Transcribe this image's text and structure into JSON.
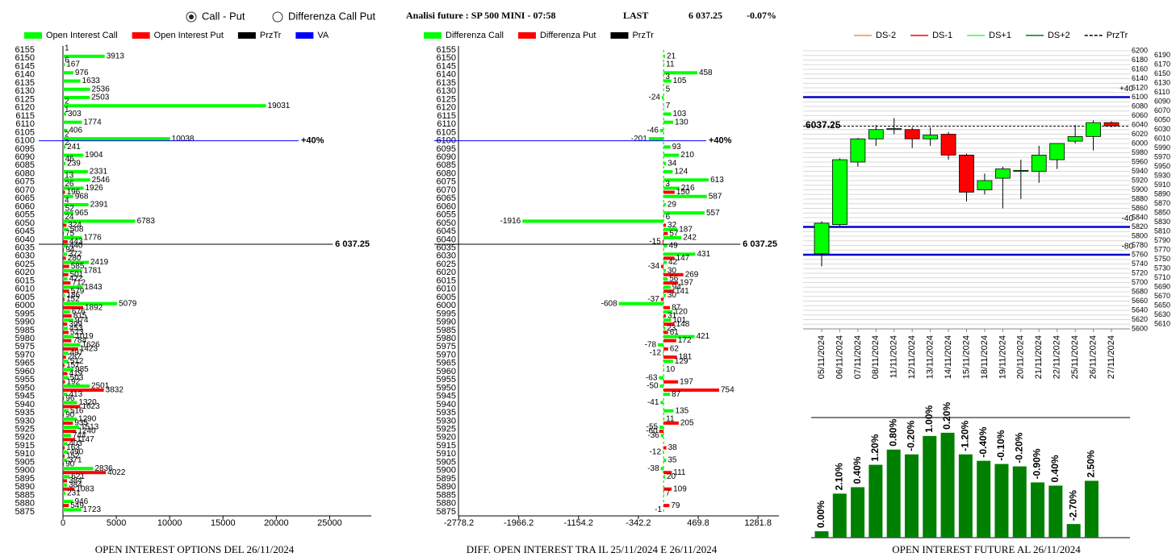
{
  "header": {
    "radio_options": [
      "Call - Put",
      "Differenza Call Put"
    ],
    "selected": 0,
    "info": "Analisi future : SP 500 MINI - 07:58",
    "last_label": "LAST",
    "last_value": "6 037.25",
    "change": "-0.07%"
  },
  "chart_data": [
    {
      "type": "hbar",
      "title": "OPEN INTEREST OPTIONS DEL 26/11/2024",
      "categories": [
        6155,
        6150,
        6145,
        6140,
        6135,
        6130,
        6125,
        6120,
        6115,
        6110,
        6105,
        6100,
        6095,
        6090,
        6085,
        6080,
        6075,
        6070,
        6065,
        6060,
        6055,
        6050,
        6045,
        6040,
        6035,
        6030,
        6025,
        6020,
        6015,
        6010,
        6005,
        6000,
        5995,
        5990,
        5985,
        5980,
        5975,
        5970,
        5965,
        5960,
        5955,
        5950,
        5945,
        5940,
        5935,
        5930,
        5925,
        5920,
        5915,
        5910,
        5905,
        5900,
        5895,
        5890,
        5885,
        5880,
        5875
      ],
      "series": [
        {
          "name": "Open Interest Call",
          "color": "#00ff00",
          "values": [
            1,
            3913,
            167,
            976,
            1633,
            2536,
            2503,
            19031,
            303,
            1774,
            406,
            10038,
            241,
            1904,
            239,
            2331,
            2546,
            1926,
            968,
            2391,
            965,
            6783,
            508,
            1776,
            440,
            372,
            2419,
            1781,
            422,
            1843,
            186,
            5079,
            676,
            974,
            453,
            1019,
            1626,
            497,
            512,
            985,
            503,
            2501,
            413,
            1320,
            516,
            1290,
            1513,
            744,
            403,
            490,
            371,
            2836,
            621,
            384,
            231,
            946,
            1723
          ]
        },
        {
          "name": "Open Interest Put",
          "color": "#ff0000",
          "values": [
            0,
            6,
            0,
            0,
            0,
            0,
            2,
            1,
            0,
            0,
            2,
            2,
            0,
            46,
            0,
            13,
            26,
            196,
            4,
            52,
            24,
            324,
            75,
            443,
            94,
            280,
            585,
            501,
            712,
            579,
            152,
            1892,
            815,
            399,
            523,
            784,
            1423,
            287,
            157,
            419,
            192,
            3832,
            96,
            1623,
            90,
            935,
            1240,
            1147,
            163,
            152,
            90,
            4022,
            384,
            1083,
            0,
            549,
            0
          ]
        }
      ],
      "lines": [
        {
          "name": "PrzTr",
          "color": "#000000",
          "value": 6037.25,
          "label": "6 037.25"
        },
        {
          "name": "VA",
          "color": "#0000ff",
          "value": 6100,
          "label": "+40%"
        }
      ],
      "xlim": [
        0,
        28900
      ],
      "xticks": [
        0,
        5000,
        10000,
        15000,
        20000,
        25000
      ]
    },
    {
      "type": "hbar",
      "title": "DIFF. OPEN INTEREST TRA IL 25/11/2024 E 26/11/2024",
      "categories": [
        6155,
        6150,
        6145,
        6140,
        6135,
        6130,
        6125,
        6120,
        6115,
        6110,
        6105,
        6100,
        6095,
        6090,
        6085,
        6080,
        6075,
        6070,
        6065,
        6060,
        6055,
        6050,
        6045,
        6040,
        6035,
        6030,
        6025,
        6020,
        6015,
        6010,
        6005,
        6000,
        5995,
        5990,
        5985,
        5980,
        5975,
        5970,
        5965,
        5960,
        5955,
        5950,
        5945,
        5940,
        5935,
        5930,
        5925,
        5920,
        5915,
        5910,
        5905,
        5900,
        5895,
        5890,
        5885,
        5880,
        5875
      ],
      "series": [
        {
          "name": "Differenza Call",
          "color": "#00ff00",
          "values": [
            0,
            21,
            11,
            458,
            105,
            5,
            -24,
            7,
            103,
            130,
            -46,
            -201,
            93,
            210,
            34,
            124,
            613,
            216,
            587,
            29,
            557,
            -1916,
            187,
            242,
            49,
            431,
            42,
            30,
            56,
            94,
            30,
            -608,
            120,
            101,
            23,
            421,
            -78,
            -12,
            129,
            10,
            -63,
            -50,
            87,
            -41,
            135,
            11,
            -55,
            -36,
            0,
            -12,
            35,
            -38,
            20,
            0,
            7,
            0,
            -1
          ]
        },
        {
          "name": "Differenza Put",
          "color": "#ff0000",
          "values": [
            0,
            0,
            0,
            3,
            0,
            0,
            0,
            0,
            0,
            0,
            0,
            0,
            0,
            0,
            0,
            0,
            3,
            150,
            0,
            0,
            6,
            32,
            57,
            -15,
            0,
            147,
            -34,
            269,
            197,
            141,
            -37,
            87,
            31,
            148,
            61,
            172,
            62,
            181,
            0,
            0,
            197,
            754,
            0,
            0,
            0,
            205,
            -60,
            0,
            38,
            0,
            0,
            111,
            0,
            109,
            0,
            79,
            0
          ]
        }
      ],
      "lines": [
        {
          "name": "PrzTr",
          "color": "#000000",
          "value": 6037.25,
          "label": "6 037.25"
        },
        {
          "color": "#0000ff",
          "value": 6100,
          "label": "+40%"
        }
      ],
      "zero_line": true,
      "xlim": [
        -2784,
        1565
      ],
      "xticks": [
        -2778.2,
        -1966.2,
        -1154.2,
        -342.2,
        469.8,
        1281.8
      ]
    },
    {
      "type": "candlestick",
      "legend": [
        {
          "name": "DS-2",
          "color": "#ff8c40"
        },
        {
          "name": "DS-1",
          "color": "#ff0000"
        },
        {
          "name": "DS+1",
          "color": "#33ff33"
        },
        {
          "name": "DS+2",
          "color": "#008000"
        },
        {
          "name": "PrzTr",
          "color": "#000000",
          "dashed": true
        }
      ],
      "x": [
        "05/11/2024",
        "06/11/2024",
        "07/11/2024",
        "08/11/2024",
        "11/11/2024",
        "12/11/2024",
        "13/11/2024",
        "14/11/2024",
        "15/11/2024",
        "18/11/2024",
        "19/11/2024",
        "20/11/2024",
        "21/11/2024",
        "22/11/2024",
        "25/11/2024",
        "26/11/2024",
        "27/11/2024"
      ],
      "open": [
        5762,
        5825,
        5960,
        6010,
        6030,
        6030,
        6010,
        6020,
        5975,
        5900,
        5925,
        5940,
        5940,
        5965,
        6005,
        6015,
        6045
      ],
      "high": [
        5832,
        5968,
        6012,
        6040,
        6055,
        6035,
        6035,
        6025,
        5978,
        5935,
        5950,
        5965,
        5995,
        6000,
        6040,
        6050,
        6048
      ],
      "low": [
        5735,
        5822,
        5950,
        5995,
        6020,
        5990,
        5995,
        5965,
        5875,
        5890,
        5860,
        5880,
        5915,
        5945,
        6000,
        5985,
        6035
      ],
      "close": [
        5828,
        5965,
        6010,
        6030,
        6032,
        6010,
        6018,
        5975,
        5895,
        5920,
        5945,
        5942,
        5975,
        6000,
        6015,
        6045,
        6038
      ],
      "up_color": "#00ff00",
      "down_color": "#ff0000",
      "lines": [
        {
          "value": 6100,
          "label": "+40",
          "color": "#0000cc"
        },
        {
          "value": 5820,
          "label": "-40",
          "color": "#0000cc"
        },
        {
          "value": 5760,
          "label": "-80",
          "color": "#0000cc"
        },
        {
          "value": 6037.25,
          "label": "6037.25",
          "color": "#000000",
          "dashed": true
        }
      ],
      "ylim": [
        5600,
        6200
      ],
      "yticks": [
        5600,
        5610,
        5620,
        5630,
        5640,
        5650,
        5660,
        5670,
        5680,
        5690,
        5700,
        5710,
        5720,
        5730,
        5740,
        5750,
        5760,
        5770,
        5780,
        5790,
        5800,
        5810,
        5820,
        5830,
        5840,
        5850,
        5860,
        5870,
        5880,
        5890,
        5900,
        5910,
        5920,
        5930,
        5940,
        5950,
        5960,
        5970,
        5980,
        5990,
        6000,
        6010,
        6020,
        6030,
        6040,
        6050,
        6060,
        6070,
        6080,
        6090,
        6100,
        6110,
        6120,
        6130,
        6140,
        6150,
        6160,
        6170,
        6180,
        6190,
        6200
      ],
      "grid": true
    },
    {
      "type": "bar",
      "title": "OPEN INTEREST FUTURE AL 26/11/2024",
      "color": "#008000",
      "values": [
        8,
        55,
        63,
        91,
        110,
        104,
        127,
        131,
        104,
        96,
        92,
        89,
        69,
        65,
        17,
        71
      ],
      "change_labels": [
        "0.00%",
        "2.10%",
        "0.40%",
        "1.20%",
        "0.80%",
        "-0.20%",
        "1.00%",
        "0.20%",
        "-1.20%",
        "-0.40%",
        "-0.10%",
        "-0.20%",
        "-0.90%",
        "0.40%",
        "-2.70%",
        "2.50%"
      ],
      "ylim": [
        0,
        150
      ]
    }
  ]
}
